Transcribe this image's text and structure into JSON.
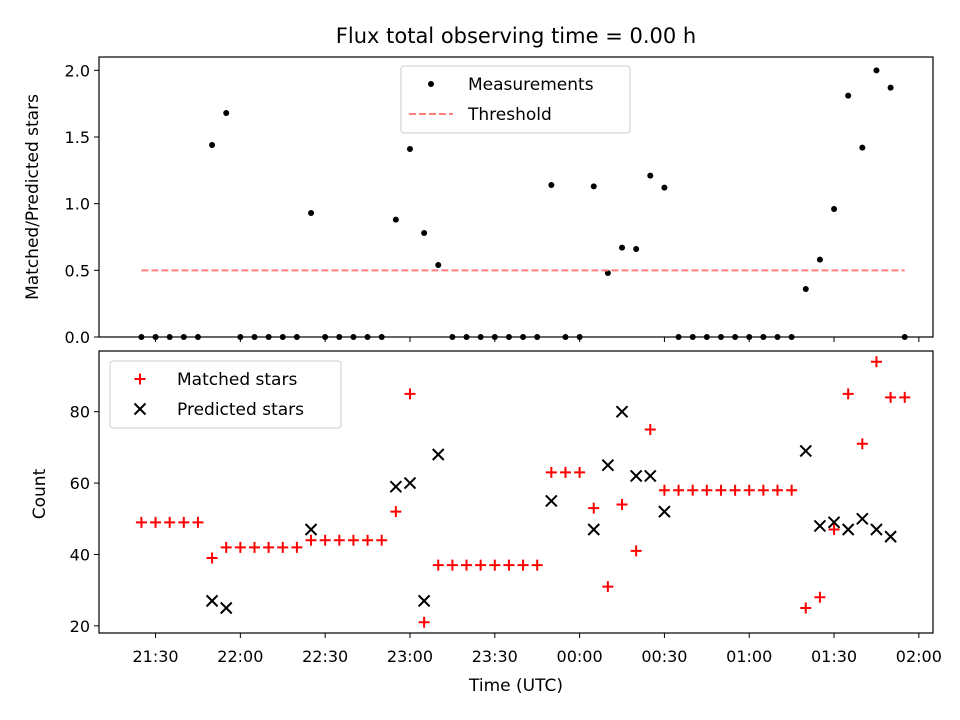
{
  "title": "Flux total observing time = 0.00 h",
  "chart_data": [
    {
      "type": "scatter",
      "ylabel": "Matched/Predicted stars",
      "ylim": [
        0,
        2.1
      ],
      "yticks": [
        "0.0",
        "0.5",
        "1.0",
        "1.5",
        "2.0"
      ],
      "legend": {
        "placement": "upper center",
        "entries": [
          "Measurements",
          "Threshold"
        ]
      },
      "series": [
        {
          "name": "Measurements",
          "color": "#000000",
          "marker": "dot",
          "points": [
            [
              "21:25",
              0
            ],
            [
              "21:30",
              0
            ],
            [
              "21:35",
              0
            ],
            [
              "21:40",
              0
            ],
            [
              "21:45",
              0
            ],
            [
              "21:50",
              1.44
            ],
            [
              "21:55",
              1.68
            ],
            [
              "22:00",
              0
            ],
            [
              "22:05",
              0
            ],
            [
              "22:10",
              0
            ],
            [
              "22:15",
              0
            ],
            [
              "22:20",
              0
            ],
            [
              "22:25",
              0.93
            ],
            [
              "22:30",
              0
            ],
            [
              "22:35",
              0
            ],
            [
              "22:40",
              0
            ],
            [
              "22:45",
              0
            ],
            [
              "22:50",
              0
            ],
            [
              "22:55",
              0.88
            ],
            [
              "23:00",
              1.41
            ],
            [
              "23:05",
              0.78
            ],
            [
              "23:10",
              0.54
            ],
            [
              "23:15",
              0
            ],
            [
              "23:20",
              0
            ],
            [
              "23:25",
              0
            ],
            [
              "23:30",
              0
            ],
            [
              "23:35",
              0
            ],
            [
              "23:40",
              0
            ],
            [
              "23:45",
              0
            ],
            [
              "23:50",
              1.14
            ],
            [
              "23:55",
              0
            ],
            [
              "00:00",
              0
            ],
            [
              "00:05",
              1.13
            ],
            [
              "00:10",
              0.48
            ],
            [
              "00:15",
              0.67
            ],
            [
              "00:20",
              0.66
            ],
            [
              "00:25",
              1.21
            ],
            [
              "00:30",
              1.12
            ],
            [
              "00:35",
              0
            ],
            [
              "00:40",
              0
            ],
            [
              "00:45",
              0
            ],
            [
              "00:50",
              0
            ],
            [
              "00:55",
              0
            ],
            [
              "01:00",
              0
            ],
            [
              "01:05",
              0
            ],
            [
              "01:10",
              0
            ],
            [
              "01:15",
              0
            ],
            [
              "01:20",
              0.36
            ],
            [
              "01:25",
              0.58
            ],
            [
              "01:30",
              0.96
            ],
            [
              "01:35",
              1.81
            ],
            [
              "01:40",
              1.42
            ],
            [
              "01:45",
              2.0
            ],
            [
              "01:50",
              1.87
            ],
            [
              "01:55",
              0
            ]
          ]
        },
        {
          "name": "Threshold",
          "color": "#ff7f7f",
          "style": "dashed",
          "points": [
            [
              "21:25",
              0.5
            ],
            [
              "01:55",
              0.5
            ]
          ]
        }
      ]
    },
    {
      "type": "scatter",
      "xlabel": "Time (UTC)",
      "ylabel": "Count",
      "ylim": [
        18,
        97
      ],
      "yticks": [
        "20",
        "40",
        "60",
        "80"
      ],
      "xticks": [
        "21:30",
        "22:00",
        "22:30",
        "23:00",
        "23:30",
        "00:00",
        "00:30",
        "01:00",
        "01:30",
        "02:00"
      ],
      "legend": {
        "placement": "upper left",
        "entries": [
          "Matched stars",
          "Predicted stars"
        ]
      },
      "series": [
        {
          "name": "Matched stars",
          "color": "#ff0000",
          "marker": "plus",
          "points": [
            [
              "21:25",
              49
            ],
            [
              "21:30",
              49
            ],
            [
              "21:35",
              49
            ],
            [
              "21:40",
              49
            ],
            [
              "21:45",
              49
            ],
            [
              "21:50",
              39
            ],
            [
              "21:55",
              42
            ],
            [
              "22:00",
              42
            ],
            [
              "22:05",
              42
            ],
            [
              "22:10",
              42
            ],
            [
              "22:15",
              42
            ],
            [
              "22:20",
              42
            ],
            [
              "22:25",
              44
            ],
            [
              "22:30",
              44
            ],
            [
              "22:35",
              44
            ],
            [
              "22:40",
              44
            ],
            [
              "22:45",
              44
            ],
            [
              "22:50",
              44
            ],
            [
              "22:55",
              52
            ],
            [
              "23:00",
              85
            ],
            [
              "23:05",
              21
            ],
            [
              "23:10",
              37
            ],
            [
              "23:15",
              37
            ],
            [
              "23:20",
              37
            ],
            [
              "23:25",
              37
            ],
            [
              "23:30",
              37
            ],
            [
              "23:35",
              37
            ],
            [
              "23:40",
              37
            ],
            [
              "23:45",
              37
            ],
            [
              "23:50",
              63
            ],
            [
              "23:55",
              63
            ],
            [
              "00:00",
              63
            ],
            [
              "00:05",
              53
            ],
            [
              "00:10",
              31
            ],
            [
              "00:15",
              54
            ],
            [
              "00:20",
              41
            ],
            [
              "00:25",
              75
            ],
            [
              "00:30",
              58
            ],
            [
              "00:35",
              58
            ],
            [
              "00:40",
              58
            ],
            [
              "00:45",
              58
            ],
            [
              "00:50",
              58
            ],
            [
              "00:55",
              58
            ],
            [
              "01:00",
              58
            ],
            [
              "01:05",
              58
            ],
            [
              "01:10",
              58
            ],
            [
              "01:15",
              58
            ],
            [
              "01:20",
              25
            ],
            [
              "01:25",
              28
            ],
            [
              "01:30",
              47
            ],
            [
              "01:35",
              85
            ],
            [
              "01:40",
              71
            ],
            [
              "01:45",
              94
            ],
            [
              "01:50",
              84
            ],
            [
              "01:55",
              84
            ]
          ]
        },
        {
          "name": "Predicted stars",
          "color": "#000000",
          "marker": "x",
          "points": [
            [
              "21:50",
              27
            ],
            [
              "21:55",
              25
            ],
            [
              "22:25",
              47
            ],
            [
              "22:55",
              59
            ],
            [
              "23:00",
              60
            ],
            [
              "23:05",
              27
            ],
            [
              "23:10",
              68
            ],
            [
              "23:50",
              55
            ],
            [
              "00:05",
              47
            ],
            [
              "00:10",
              65
            ],
            [
              "00:15",
              80
            ],
            [
              "00:20",
              62
            ],
            [
              "00:25",
              62
            ],
            [
              "00:30",
              52
            ],
            [
              "01:20",
              69
            ],
            [
              "01:25",
              48
            ],
            [
              "01:30",
              49
            ],
            [
              "01:35",
              47
            ],
            [
              "01:40",
              50
            ],
            [
              "01:45",
              47
            ],
            [
              "01:50",
              45
            ]
          ]
        }
      ]
    }
  ]
}
